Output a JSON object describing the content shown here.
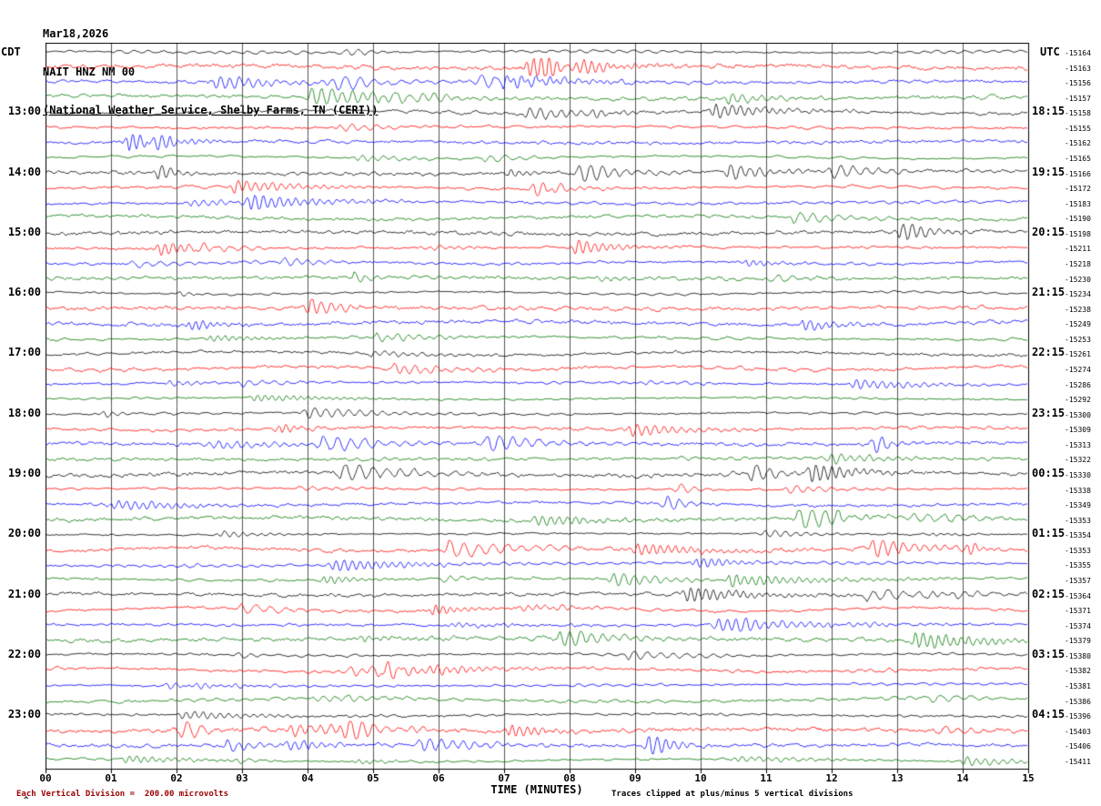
{
  "chart_data": {
    "type": "line",
    "subtype": "helicorder-seismogram",
    "title_lines": {
      "date": "Mar18,2026",
      "station": "NAIT HNZ NM 00",
      "source": "(National Weather Service, Shelby Farms, TN (CERI))"
    },
    "left_timezone": "CDT",
    "right_timezone": "UTC",
    "xlabel": "TIME (MINUTES)",
    "x_range_minutes": [
      0,
      15
    ],
    "x_ticks": [
      "00",
      "01",
      "02",
      "03",
      "04",
      "05",
      "06",
      "07",
      "08",
      "09",
      "10",
      "11",
      "12",
      "13",
      "14",
      "15"
    ],
    "grid": {
      "vertical_divisions": 15,
      "vertical_line_each_minute": true
    },
    "minutes_per_line": 15,
    "row_count": 48,
    "rows_per_hour": 4,
    "first_label_row": 4,
    "left_hour_labels": [
      "13:00",
      "14:00",
      "15:00",
      "16:00",
      "17:00",
      "18:00",
      "19:00",
      "20:00",
      "21:00",
      "22:00",
      "23:00"
    ],
    "right_hour_labels": [
      "18:15",
      "19:15",
      "20:15",
      "21:15",
      "22:15",
      "23:15",
      "00:15",
      "01:15",
      "02:15",
      "03:15",
      "04:15"
    ],
    "right_trace_values": [
      "-15164",
      "-15163",
      "-15156",
      "-15157",
      "-15158",
      "-15155",
      "-15162",
      "-15165",
      "-15166",
      "-15172",
      "-15183",
      "-15190",
      "-15198",
      "-15211",
      "-15218",
      "-15230",
      "-15234",
      "-15238",
      "-15249",
      "-15253",
      "-15261",
      "-15274",
      "-15286",
      "-15292",
      "-15300",
      "-15309",
      "-15313",
      "-15322",
      "-15330",
      "-15338",
      "-15349",
      "-15353",
      "-15354",
      "-15353",
      "-15355",
      "-15357",
      "-15364",
      "-15371",
      "-15374",
      "-15379",
      "-15380",
      "-15382",
      "-15381",
      "-15386",
      "-15396",
      "-15403",
      "-15406",
      "-15411"
    ],
    "color_cycle": [
      "black",
      "red",
      "blue",
      "green"
    ],
    "colors": {
      "black": "#000000",
      "red": "#ff0000",
      "blue": "#0000ff",
      "green": "#007700"
    },
    "scale_note": "Each Vertical Division =  200.00 microvolts",
    "clip_note": "Traces clipped at plus/minus 5 vertical divisions",
    "microvolts_per_division": 200.0,
    "clip_divisions": 5,
    "corner_mark": "^",
    "noise_seed": 20260318
  }
}
